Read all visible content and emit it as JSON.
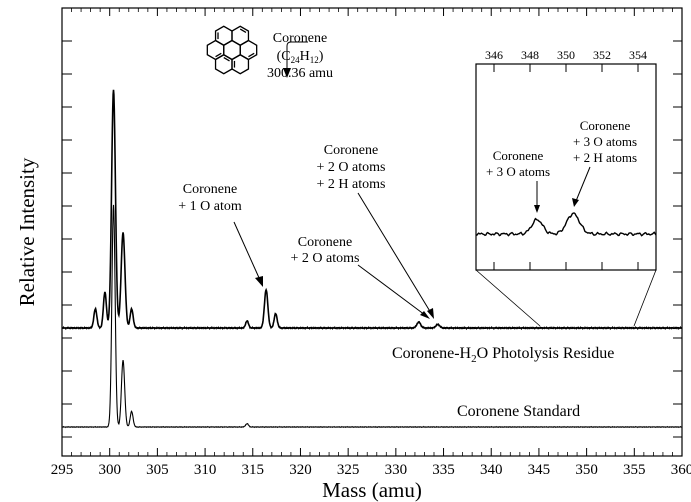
{
  "chart_data": {
    "type": "line",
    "xlabel": "Mass (amu)",
    "ylabel": "Relative Intensity",
    "xlim": [
      295,
      360
    ],
    "x_ticks": [
      "295",
      "300",
      "305",
      "310",
      "315",
      "320",
      "325",
      "330",
      "335",
      "340",
      "345",
      "350",
      "355",
      "360"
    ],
    "y_ticks_labeled": false,
    "grid": false,
    "series": [
      {
        "name": "Coronene-H₂O Photolysis Residue",
        "name_parts": [
          "Coronene-H",
          "2",
          "O Photolysis Residue"
        ],
        "baseline": 0.0,
        "peaks": [
          {
            "x": 298.5,
            "h": 0.08,
            "w": 0.16
          },
          {
            "x": 299.5,
            "h": 0.15,
            "w": 0.16
          },
          {
            "x": 300.4,
            "h": 1.0,
            "w": 0.2
          },
          {
            "x": 301.4,
            "h": 0.4,
            "w": 0.2
          },
          {
            "x": 302.3,
            "h": 0.08,
            "w": 0.16
          },
          {
            "x": 314.4,
            "h": 0.03,
            "w": 0.15
          },
          {
            "x": 316.4,
            "h": 0.16,
            "w": 0.18
          },
          {
            "x": 317.4,
            "h": 0.06,
            "w": 0.16
          },
          {
            "x": 332.4,
            "h": 0.025,
            "w": 0.2
          },
          {
            "x": 334.4,
            "h": 0.015,
            "w": 0.2
          }
        ]
      },
      {
        "name": "Coronene Standard",
        "baseline": 0.0,
        "peaks": [
          {
            "x": 300.4,
            "h": 1.0,
            "w": 0.17
          },
          {
            "x": 301.4,
            "h": 0.3,
            "w": 0.17
          },
          {
            "x": 302.3,
            "h": 0.07,
            "w": 0.15
          },
          {
            "x": 314.4,
            "h": 0.015,
            "w": 0.15
          }
        ]
      }
    ],
    "inset": {
      "x_ticks": [
        "346",
        "348",
        "350",
        "352",
        "354"
      ],
      "xlim": [
        345,
        355
      ],
      "peaks": [
        {
          "x": 348.4,
          "h": 0.6,
          "w": 0.3
        },
        {
          "x": 350.4,
          "h": 0.85,
          "w": 0.35
        }
      ],
      "annotations": [
        {
          "lines": [
            "Coronene",
            "+ 3 O atoms"
          ]
        },
        {
          "lines": [
            "Coronene",
            "+ 3 O atoms",
            "+ 2 H atoms"
          ]
        }
      ]
    },
    "annotations": [
      {
        "lines": [
          "Coronene + 1 O atom"
        ],
        "line1": "Coronene",
        "line2": "+ 1 O atom"
      },
      {
        "line1": "Coronene",
        "line2": "+ 2 O atoms"
      },
      {
        "line1": "Coronene",
        "line2": "+ 2 O atoms",
        "line3": "+ 2 H atoms"
      }
    ],
    "molecule_label": {
      "name": "Coronene",
      "formula_parts": [
        "(C",
        "24",
        "H",
        "12",
        ")"
      ],
      "mass": "300.36 amu"
    }
  },
  "colors": {
    "line": "#000000",
    "background": "#ffffff"
  }
}
